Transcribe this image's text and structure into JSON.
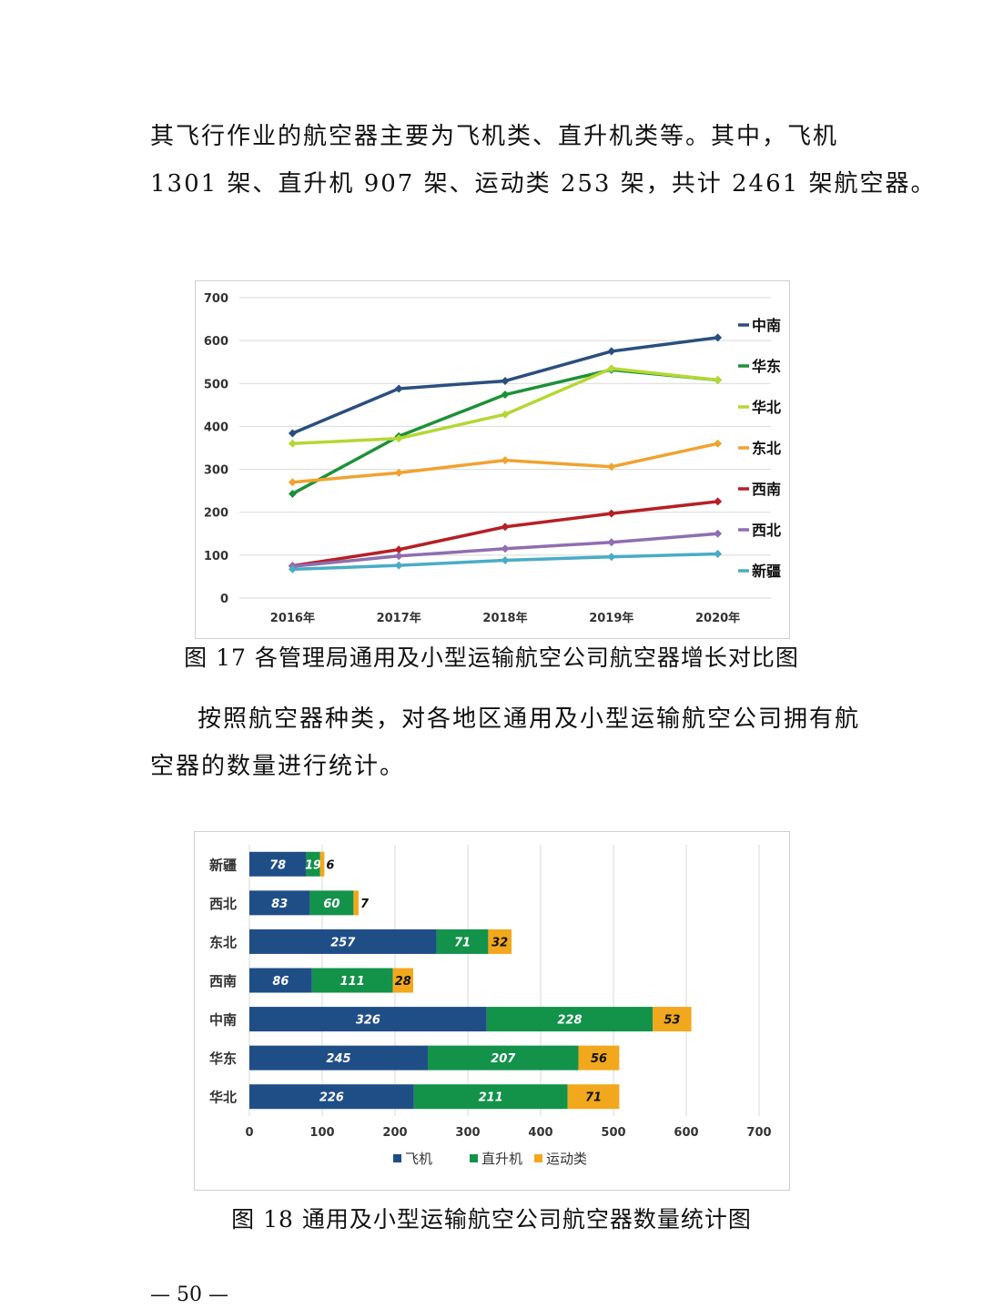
{
  "paragraph1": {
    "lines": [
      "其飞行作业的航空器主要为飞机类、直升机类等。其中，飞机",
      "1301 架、直升机 907 架、运动类 253 架，共计 2461 架航空器。"
    ]
  },
  "figure17": {
    "caption": "图 17  各管理局通用及小型运输航空公司航空器增长对比图"
  },
  "paragraph2": {
    "lines": [
      "按照航空器种类，对各地区通用及小型运输航空公司拥有航",
      "空器的数量进行统计。"
    ]
  },
  "figure18": {
    "caption": "图 18  通用及小型运输航空公司航空器数量统计图"
  },
  "page_number": "— 50 —",
  "chart_data": [
    {
      "type": "line",
      "title": "",
      "xlabel": "",
      "ylabel": "",
      "categories": [
        "2016年",
        "2017年",
        "2018年",
        "2019年",
        "2020年"
      ],
      "ylim": [
        0,
        700
      ],
      "yticks": [
        0,
        100,
        200,
        300,
        400,
        500,
        600,
        700
      ],
      "grid": true,
      "legend_position": "right",
      "series": [
        {
          "name": "中南",
          "color": "#2a4f7f",
          "values": [
            384,
            488,
            506,
            575,
            607
          ]
        },
        {
          "name": "华东",
          "color": "#1e9138",
          "values": [
            243,
            377,
            474,
            532,
            508
          ]
        },
        {
          "name": "华北",
          "color": "#b5d734",
          "values": [
            360,
            372,
            428,
            535,
            508
          ]
        },
        {
          "name": "东北",
          "color": "#f0a330",
          "values": [
            270,
            292,
            321,
            306,
            360
          ]
        },
        {
          "name": "西南",
          "color": "#b52025",
          "values": [
            75,
            113,
            166,
            197,
            225
          ]
        },
        {
          "name": "西北",
          "color": "#8f6eb0",
          "values": [
            74,
            98,
            115,
            130,
            150
          ]
        },
        {
          "name": "新疆",
          "color": "#4aacc6",
          "values": [
            67,
            76,
            88,
            96,
            103
          ]
        }
      ]
    },
    {
      "type": "bar",
      "orientation": "horizontal",
      "stacked": true,
      "title": "",
      "xlabel": "",
      "ylabel": "",
      "categories": [
        "新疆",
        "西北",
        "东北",
        "西南",
        "中南",
        "华东",
        "华北"
      ],
      "xlim": [
        0,
        700
      ],
      "xticks": [
        0,
        100,
        200,
        300,
        400,
        500,
        600,
        700
      ],
      "grid": true,
      "legend_position": "bottom",
      "series": [
        {
          "name": "飞机",
          "color": "#1f4e87",
          "values": [
            78,
            83,
            257,
            86,
            326,
            245,
            226
          ]
        },
        {
          "name": "直升机",
          "color": "#13924a",
          "values": [
            19,
            60,
            71,
            111,
            228,
            207,
            211
          ]
        },
        {
          "name": "运动类",
          "color": "#f2a81d",
          "values": [
            6,
            7,
            32,
            28,
            53,
            56,
            71
          ]
        }
      ]
    }
  ]
}
